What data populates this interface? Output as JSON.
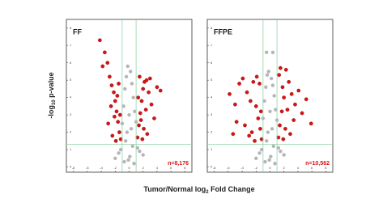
{
  "axis_labels": {
    "y": {
      "text": "-log",
      "sub": "10",
      "rest": " p-value"
    },
    "x": {
      "text": "Tumor/Normal log",
      "sub": "2",
      "rest": " Fold Change"
    }
  },
  "chart_data": [
    {
      "type": "scatter",
      "title": "FF",
      "annotation": "n=8,176",
      "xlim": [
        -9,
        9
      ],
      "ylim": [
        -0.3,
        8.5
      ],
      "xticks": [
        -8,
        -6,
        -4,
        -2,
        0,
        2,
        4,
        6,
        8
      ],
      "yticks": [
        0,
        1,
        2,
        3,
        4,
        5,
        6,
        7,
        8
      ],
      "vlines": [
        -1,
        1
      ],
      "hline": 1.3,
      "line_color": "#8fd3a8",
      "series": [
        {
          "color": "#b5b5b5",
          "x": [
            -1,
            -0.8,
            -0.6,
            -0.4,
            -0.2,
            0,
            0.2,
            0.4,
            0.6,
            0.8,
            1,
            -1.2,
            1.2,
            -1.5,
            1.5,
            -0.5,
            0.5,
            -0.1,
            0.1,
            -2,
            2,
            -0.3,
            0.3,
            -0.7,
            0.7
          ],
          "y": [
            2.5,
            3.5,
            4.5,
            5.2,
            5.8,
            3,
            5.5,
            4.8,
            4,
            3.2,
            2.6,
            1,
            1.1,
            0.8,
            0.9,
            1.5,
            1.2,
            0.4,
            0.6,
            0.5,
            0.7,
            2,
            2.2,
            0.3,
            0.2
          ]
        },
        {
          "color": "#d41414",
          "x": [
            -4.2,
            -3.5,
            -3.1,
            -2.8,
            -2.5,
            -2.2,
            -2,
            -1.8,
            -1.6,
            -1.4,
            -1.2,
            -3.8,
            -2.6,
            -2.1,
            -1.5,
            -1.3,
            -3,
            -2.4,
            -1.9,
            -1.7,
            1.2,
            1.4,
            1.6,
            1.8,
            2,
            2.2,
            2.5,
            2.8,
            3.2,
            3.6,
            4,
            1.3,
            1.5,
            2.1,
            2.6,
            3,
            1.9,
            2.4,
            1.7,
            4.5
          ],
          "y": [
            7.3,
            6.6,
            6,
            5.2,
            4.7,
            4.3,
            3.8,
            3.2,
            2.6,
            2,
            1.6,
            5.8,
            3.5,
            2.9,
            4.8,
            3,
            2.5,
            1.8,
            1.5,
            4.1,
            1.7,
            2.4,
            3.1,
            3.8,
            4.5,
            4.9,
            5,
            4.3,
            3.6,
            2.8,
            4.6,
            4,
            5.2,
            2.2,
            1.9,
            5.1,
            1.6,
            3.3,
            2.7,
            4.4
          ]
        }
      ]
    },
    {
      "type": "scatter",
      "title": "FFPE",
      "annotation": "n=10,562",
      "xlim": [
        -9,
        9
      ],
      "ylim": [
        -0.3,
        8.5
      ],
      "xticks": [
        -8,
        -6,
        -4,
        -2,
        0,
        2,
        4,
        6,
        8
      ],
      "yticks": [
        0,
        1,
        2,
        3,
        4,
        5,
        6,
        7,
        8
      ],
      "vlines": [
        -1,
        1
      ],
      "hline": 1.3,
      "line_color": "#8fd3a8",
      "series": [
        {
          "color": "#b5b5b5",
          "x": [
            -1,
            -0.8,
            -0.6,
            -0.4,
            -0.2,
            0,
            0.2,
            0.4,
            0.6,
            0.8,
            1,
            -1.2,
            1.2,
            -1.5,
            1.5,
            -0.5,
            0.5,
            -0.1,
            0.1,
            -2,
            2,
            -0.3,
            0.3,
            -0.7,
            0.7,
            -0.5,
            0.4
          ],
          "y": [
            2.8,
            3.8,
            4.6,
            5.3,
            5.5,
            3.2,
            5.1,
            4.7,
            4.1,
            3.3,
            2.7,
            1,
            1.1,
            0.8,
            0.9,
            1.5,
            1.2,
            0.4,
            0.6,
            0.5,
            0.7,
            2,
            2.2,
            0.3,
            0.2,
            6.6,
            6.6
          ]
        },
        {
          "color": "#d41414",
          "x": [
            -5.8,
            -5,
            -4.4,
            -3.9,
            -3.3,
            -2.8,
            -2.4,
            -2,
            -1.7,
            -1.4,
            -1.2,
            -4.8,
            -3.6,
            -2.6,
            -1.5,
            -1.3,
            -3,
            -2.2,
            -1.9,
            -5.3,
            1.2,
            1.4,
            1.7,
            2,
            2.3,
            2.7,
            3.1,
            3.6,
            4.1,
            4.6,
            5.2,
            1.3,
            1.5,
            2.2,
            2.9,
            3.4,
            1.9,
            2.5,
            1.8,
            5.9
          ],
          "y": [
            4.2,
            3.6,
            4.8,
            5.1,
            4.3,
            3.8,
            4.9,
            3.5,
            2.8,
            2.2,
            1.6,
            2.6,
            2.4,
            2,
            4.8,
            3.2,
            1.8,
            1.5,
            5.2,
            1.9,
            1.7,
            2.4,
            3.2,
            4,
            5.6,
            4.9,
            4.2,
            3.6,
            4.4,
            3.1,
            3.9,
            5.3,
            5.7,
            2.2,
            1.9,
            2.7,
            1.6,
            3.3,
            4.6,
            2.5
          ]
        }
      ]
    }
  ]
}
